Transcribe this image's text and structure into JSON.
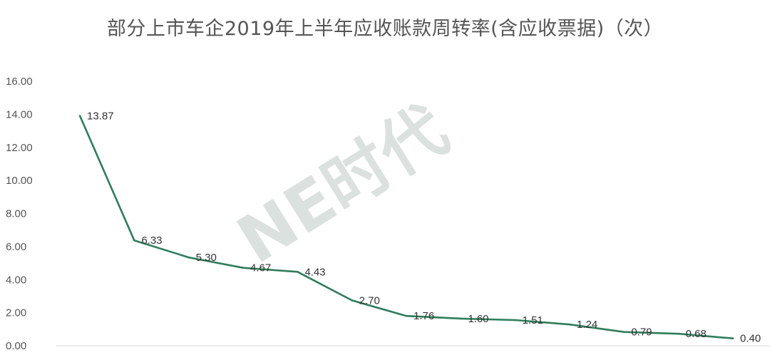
{
  "chart_data": {
    "type": "line",
    "title": "部分上市车企2019年上半年应收账款周转率(含应收票据)（次）",
    "xlabel": "",
    "ylabel": "",
    "ylim": [
      0,
      16
    ],
    "yticks": [
      "0.00",
      "2.00",
      "4.00",
      "6.00",
      "8.00",
      "10.00",
      "12.00",
      "14.00",
      "16.00"
    ],
    "grid": false,
    "legend": "none",
    "series": [
      {
        "values": [
          13.87,
          6.33,
          5.3,
          4.67,
          4.43,
          2.7,
          1.76,
          1.6,
          1.51,
          1.24,
          0.79,
          0.68,
          0.4
        ],
        "labels": [
          "13.87",
          "6.33",
          "5.30",
          "4.67",
          "4.43",
          "2.70",
          "1.76",
          "1.60",
          "1.51",
          "1.24",
          "0.79",
          "0.68",
          "0.40"
        ]
      }
    ],
    "watermark": "NE时代",
    "colors": {
      "line": "#2e7d5b",
      "axis": "#d9d9d9",
      "text": "#555555"
    }
  }
}
